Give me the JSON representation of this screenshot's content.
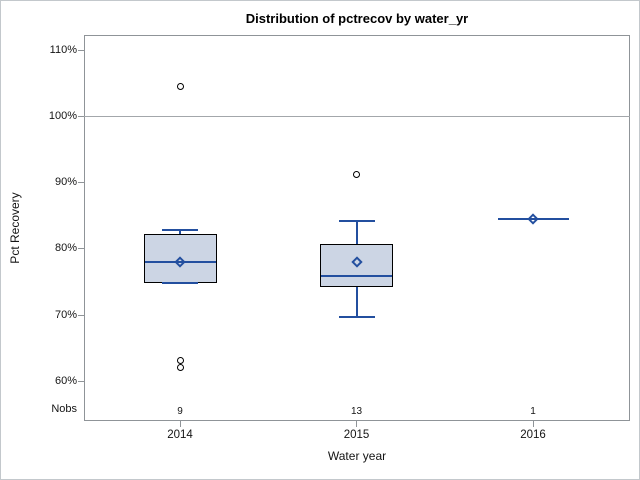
{
  "title": "Distribution of pctrecov by water_yr",
  "chart_data": {
    "type": "boxplot",
    "title": "Distribution of pctrecov by water_yr",
    "xlabel": "Water year",
    "ylabel": "Pct Recovery",
    "categories": [
      "2014",
      "2015",
      "2016"
    ],
    "nobs_label": "Nobs",
    "nobs": [
      "9",
      "13",
      "1"
    ],
    "y_ticks": [
      110,
      100,
      90,
      80,
      70,
      60
    ],
    "y_tick_labels": [
      "110%",
      "100%",
      "90%",
      "80%",
      "70%",
      "60%"
    ],
    "ylim": [
      54,
      112.2
    ],
    "reference_line": 100,
    "grid": false,
    "series": [
      {
        "category": "2014",
        "n": 9,
        "q1": 74.7,
        "median": 78.0,
        "q3": 82.1,
        "whisker_low": 74.7,
        "whisker_high": 82.8,
        "mean": 78.0,
        "outliers": [
          104.5,
          63.0,
          62.0
        ]
      },
      {
        "category": "2015",
        "n": 13,
        "q1": 74.1,
        "median": 75.8,
        "q3": 80.7,
        "whisker_low": 69.7,
        "whisker_high": 84.2,
        "mean": 78.0,
        "outliers": [
          91.1
        ]
      },
      {
        "category": "2016",
        "n": 1,
        "q1": 84.5,
        "median": 84.5,
        "q3": 84.5,
        "whisker_low": 84.5,
        "whisker_high": 84.5,
        "mean": 84.5,
        "outliers": []
      }
    ],
    "colors": {
      "box_fill": "#ccd5e4",
      "box_border": "#000000",
      "stat_line": "#234f9f",
      "frame": "#8f9498",
      "reference": "#a3a7ab",
      "outlier_stroke": "#000000"
    }
  }
}
